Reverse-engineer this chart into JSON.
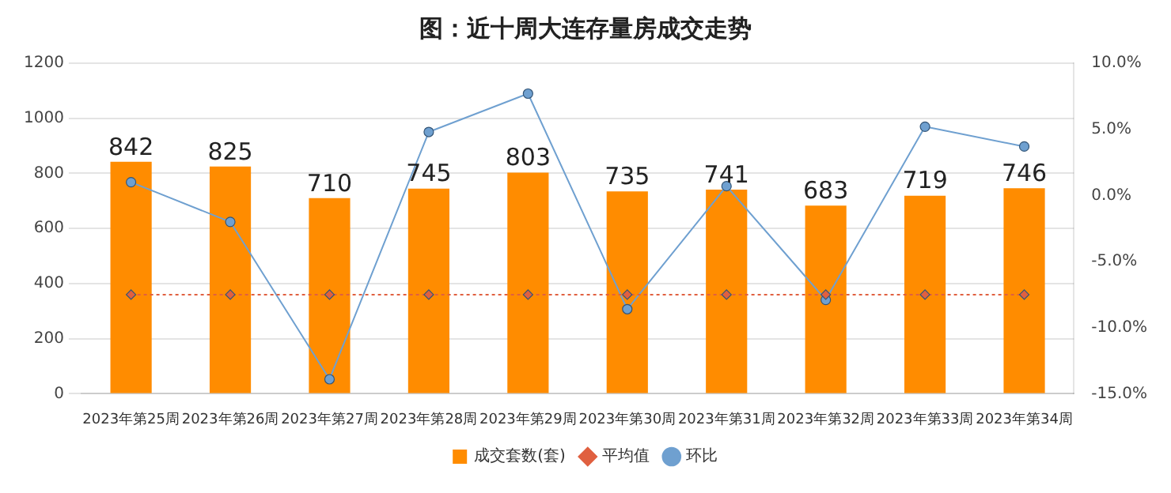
{
  "chart_data": {
    "type": "bar",
    "title": "图：近十周大连存量房成交走势",
    "categories": [
      "2023年第25周",
      "2023年第26周",
      "2023年第27周",
      "2023年第28周",
      "2023年第29周",
      "2023年第30周",
      "2023年第31周",
      "2023年第32周",
      "2023年第33周",
      "2023年第34周"
    ],
    "series": [
      {
        "name": "成交套数(套)",
        "color": "#ff8c00",
        "values": [
          842,
          825,
          710,
          745,
          803,
          735,
          741,
          683,
          719,
          746
        ],
        "value_labels": [
          "842",
          "825",
          "710",
          "745",
          "803",
          "735",
          "741",
          "683",
          "719",
          "746"
        ]
      },
      {
        "name": "平均值",
        "type": "line",
        "color": "#e06040",
        "line_style": "dotted",
        "marker": "diamond",
        "values": [
          360,
          360,
          360,
          360,
          360,
          360,
          360,
          360,
          360,
          360
        ]
      },
      {
        "name": "环比",
        "type": "line",
        "axis": "y2",
        "color": "#6fa0d0",
        "line_style": "solid",
        "marker": "circle",
        "values": [
          1.0,
          -2.0,
          -13.9,
          4.8,
          7.7,
          -8.6,
          0.7,
          -7.9,
          5.2,
          3.7
        ]
      }
    ],
    "ylim": [
      0,
      1200
    ],
    "yticks": [
      0,
      200,
      400,
      600,
      800,
      1000,
      1200
    ],
    "y2lim": [
      -15,
      10
    ],
    "y2ticks": [
      {
        "value": -15,
        "label": "-15.0%"
      },
      {
        "value": -10,
        "label": "-10.0%"
      },
      {
        "value": -5,
        "label": "-5.0%"
      },
      {
        "value": 0,
        "label": "0.0%"
      },
      {
        "value": 5,
        "label": "5.0%"
      },
      {
        "value": 10,
        "label": "10.0%"
      }
    ],
    "grid": "y",
    "legend": "bottom"
  }
}
